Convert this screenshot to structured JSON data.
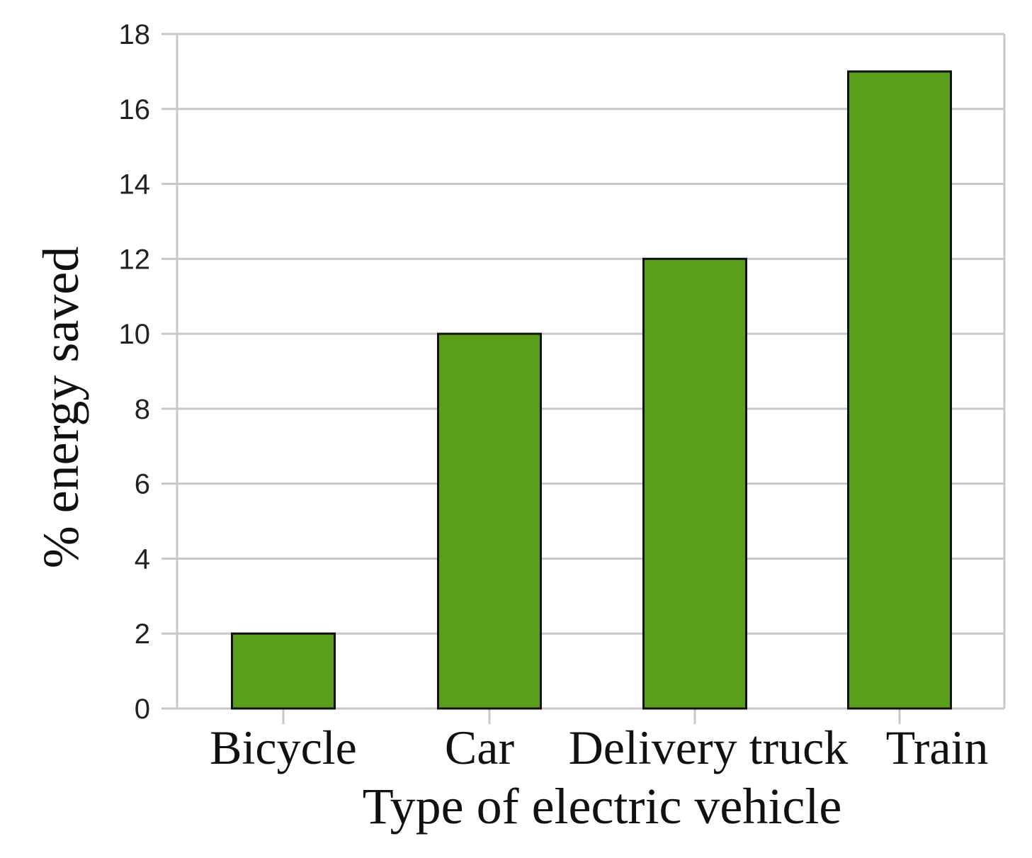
{
  "chart_data": {
    "type": "bar",
    "categories": [
      "Bicycle",
      "Car",
      "Delivery truck",
      "Train"
    ],
    "values": [
      2,
      10,
      12,
      17
    ],
    "title": "",
    "xlabel": "Type of electric vehicle",
    "ylabel": "% energy saved",
    "ylim": [
      0,
      18
    ],
    "yticks": [
      "0",
      "2",
      "4",
      "6",
      "8",
      "10",
      "12",
      "14",
      "16",
      "18"
    ],
    "grid": true,
    "legend": "none",
    "bar_color": "#5a9e1b",
    "bar_edge_color": "#111111",
    "grid_color": "#c8c8c8"
  }
}
